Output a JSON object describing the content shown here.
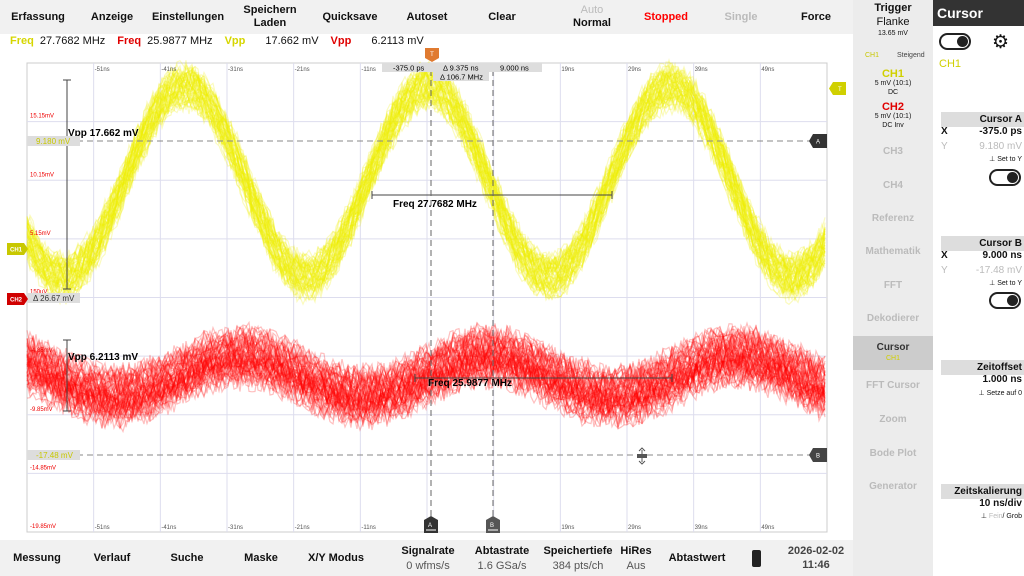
{
  "topbar": {
    "items": [
      "Erfassung",
      "Anzeige",
      "Einstellungen",
      "Speichern\nLaden",
      "Quicksave",
      "Autoset",
      "Clear"
    ],
    "trigger_mode": {
      "auto": "Auto",
      "normal": "Normal"
    },
    "run_state": "Stopped",
    "single": "Single",
    "force": "Force"
  },
  "measurements": {
    "ch1_freq_label": "Freq",
    "ch1_freq": "27.7682 MHz",
    "ch2_freq_label": "Freq",
    "ch2_freq": "25.9877 MHz",
    "ch1_vpp_label": "Vpp",
    "ch1_vpp": "17.662 mV",
    "ch2_vpp_label": "Vpp",
    "ch2_vpp": "6.2113 mV"
  },
  "plot": {
    "time_labels": [
      "-51ns",
      "-41ns",
      "-31ns",
      "-21ns",
      "-11ns",
      "19ns",
      "29ns",
      "39ns",
      "49ns"
    ],
    "volt_labels": [
      "15.15mV",
      "10.15mV",
      "5.15mV",
      "150uV",
      "-4.85mV",
      "-9.85mV",
      "-14.85mV",
      "-19.85mV"
    ],
    "cursor_readout": {
      "a_x": "-375.0 ps",
      "delta_x": "Δ 9.375 ns",
      "b_x": "9.000 ns",
      "delta_f": "Δ 106.7 MHz"
    },
    "cursor_a_y": "9.180 mV",
    "cursor_b_y": "-17.48 mV",
    "delta_y": "Δ 26.67 mV",
    "vpp1": "Vpp 17.662 mV",
    "vpp2": "Vpp 6.2113 mV",
    "freq1": "Freq 27.7682 MHz",
    "freq2": "Freq 25.9877 MHz",
    "markers": {
      "trigger": "T",
      "ch1": "CH1",
      "ch2": "CH2",
      "a": "A",
      "b": "B"
    },
    "colors": {
      "ch1": "#f0f000",
      "ch2": "#ff0000",
      "trigger": "#e07a30"
    }
  },
  "trigger": {
    "title": "Trigger",
    "type": "Flanke",
    "level": "13.65 mV",
    "source": "CH1",
    "slope": "Steigend"
  },
  "channels": [
    {
      "name": "CH1",
      "scale": "5 mV (10:1)",
      "coupling": "DC"
    },
    {
      "name": "CH2",
      "scale": "5 mV (10:1)",
      "coupling": "DC Inv"
    }
  ],
  "sidebar": {
    "items": [
      "CH3",
      "CH4",
      "Referenz",
      "Mathematik",
      "FFT",
      "Dekodierer",
      "Cursor",
      "FFT Cursor",
      "Zoom",
      "Bode Plot",
      "Generator"
    ],
    "cursor_sub": "CH1"
  },
  "cursor_panel": {
    "title": "Cursor",
    "source": "CH1",
    "a": {
      "title": "Cursor A",
      "x_label": "X",
      "x": "-375.0 ps",
      "y_label": "Y",
      "y": "9.180 mV",
      "set": "Set to Y"
    },
    "b": {
      "title": "Cursor B",
      "x_label": "X",
      "x": "9.000 ns",
      "y_label": "Y",
      "y": "-17.48 mV",
      "set": "Set to Y"
    },
    "offset": {
      "title": "Zeitoffset",
      "value": "1.000 ns",
      "action": "Setze auf 0"
    },
    "scale": {
      "title": "Zeitskalierung",
      "value": "10 ns/div",
      "fine": "Fein",
      "coarse": "/ Grob"
    }
  },
  "bottombar": {
    "items": [
      "Messung",
      "Verlauf",
      "Suche",
      "Maske",
      "X/Y Modus"
    ],
    "signalrate": {
      "label": "Signalrate",
      "value": "0 wfms/s"
    },
    "abtastrate": {
      "label": "Abtastrate",
      "value": "1.6 GSa/s"
    },
    "speichertiefe": {
      "label": "Speichertiefe",
      "value": "384 pts/ch"
    },
    "hires": {
      "label": "HiRes",
      "value": "Aus"
    },
    "abtastwert": "Abtastwert",
    "date": "2026-02-02",
    "time": "11:46"
  }
}
